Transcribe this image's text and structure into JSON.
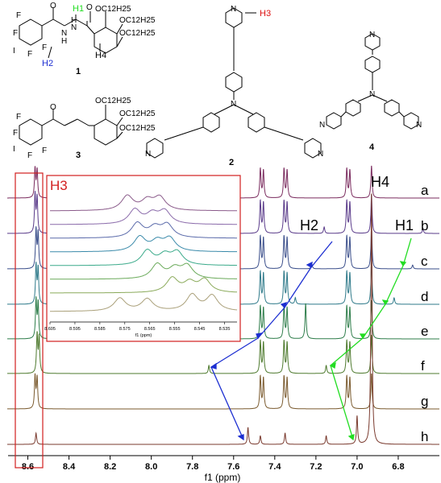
{
  "chart_data": {
    "type": "line",
    "xlabel": "f1 (ppm)",
    "xlim": [
      8.7,
      6.6
    ],
    "x_ticks": [
      8.6,
      8.4,
      8.2,
      8.0,
      7.8,
      7.6,
      7.4,
      7.2,
      7.0,
      6.8
    ],
    "series": [
      {
        "name": "a",
        "color": "#7a2b5e",
        "peaks": [
          [
            8.565,
            0.9
          ],
          [
            8.555,
            0.85
          ],
          [
            7.47,
            0.9
          ],
          [
            7.455,
            0.85
          ],
          [
            7.355,
            0.9
          ],
          [
            7.34,
            0.85
          ],
          [
            7.05,
            0.9
          ],
          [
            7.035,
            0.85
          ],
          [
            6.93,
            1.0
          ]
        ]
      },
      {
        "name": "b",
        "color": "#5a3b8a",
        "peaks": [
          [
            8.565,
            1.2
          ],
          [
            8.555,
            1.1
          ],
          [
            7.47,
            1.0
          ],
          [
            7.455,
            0.95
          ],
          [
            7.355,
            1.0
          ],
          [
            7.34,
            0.95
          ],
          [
            7.16,
            0.2
          ],
          [
            7.05,
            1.0
          ],
          [
            7.035,
            0.95
          ],
          [
            6.93,
            1.2
          ],
          [
            6.68,
            0.15
          ]
        ]
      },
      {
        "name": "c",
        "color": "#3a4e8a",
        "peaks": [
          [
            8.56,
            1.2
          ],
          [
            8.55,
            1.1
          ],
          [
            7.47,
            1.0
          ],
          [
            7.455,
            0.95
          ],
          [
            7.355,
            1.0
          ],
          [
            7.34,
            0.95
          ],
          [
            7.22,
            0.15
          ],
          [
            7.05,
            1.0
          ],
          [
            7.035,
            0.95
          ],
          [
            6.93,
            1.3
          ],
          [
            6.73,
            0.12
          ]
        ]
      },
      {
        "name": "d",
        "color": "#2f7a8a",
        "peaks": [
          [
            8.56,
            1.2
          ],
          [
            8.55,
            1.1
          ],
          [
            7.47,
            1.0
          ],
          [
            7.455,
            0.95
          ],
          [
            7.355,
            1.0
          ],
          [
            7.34,
            0.95
          ],
          [
            7.3,
            0.2
          ],
          [
            7.05,
            1.0
          ],
          [
            7.035,
            0.95
          ],
          [
            6.93,
            1.3
          ],
          [
            6.82,
            0.2
          ]
        ]
      },
      {
        "name": "e",
        "color": "#2e7d4a",
        "peaks": [
          [
            8.56,
            1.2
          ],
          [
            8.55,
            1.1
          ],
          [
            7.47,
            1.0
          ],
          [
            7.455,
            0.95
          ],
          [
            7.355,
            1.0
          ],
          [
            7.34,
            0.95
          ],
          [
            7.25,
            1.1
          ],
          [
            7.05,
            1.0
          ],
          [
            7.035,
            0.95
          ],
          [
            6.93,
            1.2
          ]
        ]
      },
      {
        "name": "f",
        "color": "#4e7a2e",
        "peaks": [
          [
            8.555,
            1.2
          ],
          [
            8.545,
            1.1
          ],
          [
            7.72,
            0.25
          ],
          [
            7.47,
            1.0
          ],
          [
            7.455,
            0.95
          ],
          [
            7.355,
            1.0
          ],
          [
            7.34,
            0.95
          ],
          [
            7.15,
            0.25
          ],
          [
            7.05,
            1.0
          ],
          [
            7.035,
            0.95
          ],
          [
            6.93,
            1.2
          ]
        ]
      },
      {
        "name": "g",
        "color": "#7a5a2e",
        "peaks": [
          [
            8.565,
            1.0
          ],
          [
            8.555,
            0.95
          ],
          [
            7.47,
            1.0
          ],
          [
            7.455,
            0.95
          ],
          [
            7.355,
            1.0
          ],
          [
            7.34,
            0.95
          ],
          [
            7.05,
            1.0
          ],
          [
            7.035,
            0.95
          ],
          [
            6.93,
            1.1
          ]
        ]
      },
      {
        "name": "h",
        "color": "#7a3a2e",
        "peaks": [
          [
            8.56,
            0.2
          ],
          [
            7.53,
            0.3
          ],
          [
            7.47,
            0.15
          ],
          [
            7.35,
            0.2
          ],
          [
            7.15,
            0.15
          ],
          [
            7.0,
            0.5
          ],
          [
            6.93,
            4.5
          ]
        ]
      }
    ],
    "inset": {
      "title": "H3",
      "xlabel": "f1 (ppm)",
      "xlim": [
        8.605,
        8.53
      ],
      "x_ticks": [
        8.605,
        8.595,
        8.585,
        8.575,
        8.565,
        8.555,
        8.545,
        8.535
      ],
      "series": [
        {
          "name": "a",
          "color": "#8a5a8a",
          "peaks": [
            [
              8.574,
              0.9
            ],
            [
              8.566,
              0.6
            ],
            [
              8.561,
              0.8
            ]
          ]
        },
        {
          "name": "b",
          "color": "#8a6aaa",
          "peaks": [
            [
              8.571,
              0.9
            ],
            [
              8.564,
              0.6
            ],
            [
              8.559,
              0.8
            ]
          ]
        },
        {
          "name": "c",
          "color": "#5a6aaa",
          "peaks": [
            [
              8.57,
              0.9
            ],
            [
              8.563,
              0.6
            ],
            [
              8.558,
              0.8
            ]
          ]
        },
        {
          "name": "d",
          "color": "#3a8aaa",
          "peaks": [
            [
              8.569,
              0.9
            ],
            [
              8.562,
              0.6
            ],
            [
              8.557,
              0.8
            ]
          ]
        },
        {
          "name": "e",
          "color": "#3aaa8a",
          "peaks": [
            [
              8.566,
              0.9
            ],
            [
              8.559,
              0.6
            ],
            [
              8.554,
              0.8
            ]
          ]
        },
        {
          "name": "f",
          "color": "#6aaa5a",
          "peaks": [
            [
              8.562,
              0.9
            ],
            [
              8.555,
              0.6
            ],
            [
              8.55,
              0.8
            ]
          ]
        },
        {
          "name": "g",
          "color": "#8aaa5a",
          "peaks": [
            [
              8.556,
              0.9
            ],
            [
              8.549,
              0.6
            ],
            [
              8.543,
              0.8
            ]
          ]
        },
        {
          "name": "h",
          "color": "#aaa07a",
          "peaks": [
            [
              8.577,
              0.8
            ],
            [
              8.566,
              0.75
            ],
            [
              8.548,
              1.0
            ],
            [
              8.54,
              0.95
            ]
          ]
        }
      ]
    },
    "annotations": [
      {
        "text": "H2",
        "color": "#1d2fd1"
      },
      {
        "text": "H1",
        "color": "#22dd22"
      },
      {
        "text": "H4",
        "color": "#000000"
      }
    ]
  },
  "structures": {
    "labels": [
      "1",
      "2",
      "3",
      "4"
    ],
    "hydrogens": {
      "h1": "H1",
      "h2": "H2",
      "h3": "H3",
      "h4": "H4"
    },
    "chain": "OC12H25",
    "atoms": {
      "F": "F",
      "I": "I",
      "N": "N",
      "H": "H",
      "O": "O"
    }
  }
}
